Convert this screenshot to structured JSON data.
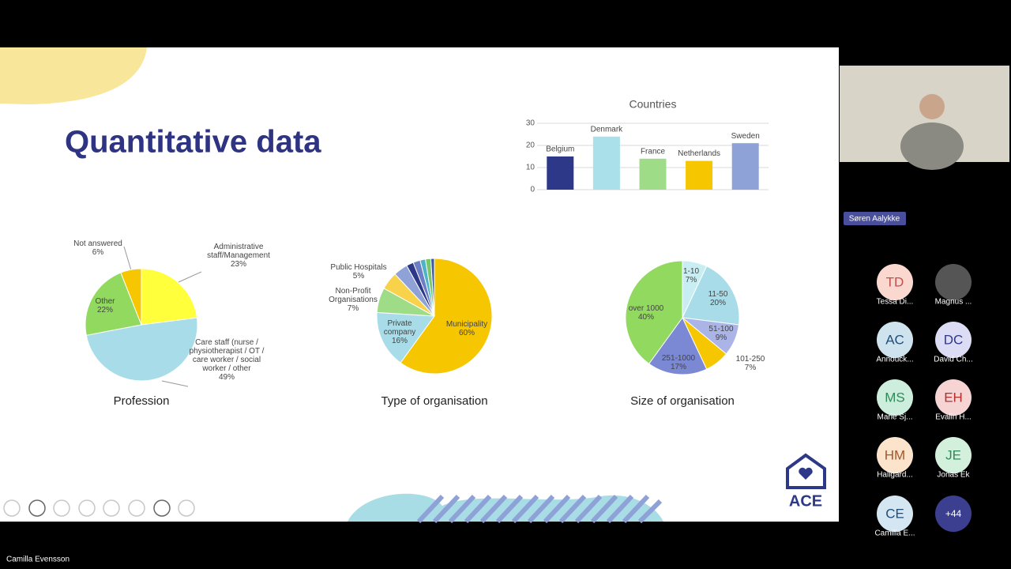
{
  "slide": {
    "title": "Quantitative data",
    "logo": "ACE"
  },
  "chart_data": [
    {
      "type": "bar",
      "title": "Countries",
      "categories": [
        "Belgium",
        "Denmark",
        "France",
        "Netherlands",
        "Sweden"
      ],
      "values": [
        15,
        24,
        14,
        13,
        21
      ],
      "colors": [
        "#2e3888",
        "#a9e0ea",
        "#9fdc88",
        "#f6c600",
        "#8fa2d8"
      ],
      "ylim": [
        0,
        30
      ],
      "yticks": [
        0,
        10,
        20,
        30
      ],
      "grid": true
    },
    {
      "type": "pie",
      "title": "Profession",
      "categories": [
        "Administrative staff/Management",
        "Care staff (nurse / physiotherapist / OT / care worker / social worker / other",
        "Other",
        "Not answered"
      ],
      "values": [
        23,
        49,
        22,
        6
      ],
      "value_labels": [
        "23%",
        "49%",
        "22%",
        "6%"
      ],
      "colors": [
        "#ffff3c",
        "#a8dce8",
        "#92d960",
        "#f6c600"
      ]
    },
    {
      "type": "pie",
      "title": "Type of organisation",
      "categories": [
        "Municipality",
        "Private company",
        "Non-Profit Organisations",
        "Public Hospitals",
        null,
        null,
        null,
        null,
        null,
        null
      ],
      "values": [
        60,
        16,
        7,
        5,
        4,
        2,
        2,
        1.5,
        1.5,
        1
      ],
      "value_labels": [
        "60%",
        "16%",
        "7%",
        "5%",
        null,
        null,
        null,
        null,
        null,
        null
      ],
      "colors": [
        "#f6c600",
        "#a8dce8",
        "#9fdc88",
        "#f7d24a",
        "#8fa2d8",
        "#2e3888",
        "#6c7fc4",
        "#4fb3c8",
        "#7ac66a",
        "#3b5aa8"
      ]
    },
    {
      "type": "pie",
      "title": "Size of organisation",
      "categories": [
        "1-10",
        "11-50",
        "51-100",
        "101-250",
        "251-1000",
        "over 1000"
      ],
      "values": [
        7,
        20,
        9,
        7,
        17,
        40
      ],
      "value_labels": [
        "7%",
        "20%",
        "9%",
        "7%",
        "17%",
        "40%"
      ],
      "colors": [
        "#c8eef3",
        "#a8dce8",
        "#aab4e6",
        "#f6c600",
        "#7b88d4",
        "#92d960"
      ]
    }
  ],
  "call": {
    "speaker": "Søren Aalykke",
    "presenter": "Camilla Evensson",
    "more": "+44",
    "participants": [
      {
        "initials": "TD",
        "name": "Tessa Di...",
        "bg": "#fbd8cf",
        "fg": "#c0504d"
      },
      {
        "initials": null,
        "name": "Magnus ...",
        "bg": "#555555",
        "fg": "#ffffff"
      },
      {
        "initials": "AC",
        "name": "Annouck...",
        "bg": "#cfe3ef",
        "fg": "#1f4e79"
      },
      {
        "initials": "DC",
        "name": "David Ch...",
        "bg": "#dcdcf5",
        "fg": "#2e3888"
      },
      {
        "initials": "MS",
        "name": "Marie Sj...",
        "bg": "#cdeedd",
        "fg": "#2e8b57"
      },
      {
        "initials": "EH",
        "name": "Evalin H...",
        "bg": "#f6d4d4",
        "fg": "#b03030"
      },
      {
        "initials": "HM",
        "name": "Hallgard...",
        "bg": "#fbe3cc",
        "fg": "#a0582a"
      },
      {
        "initials": "JE",
        "name": "Jonas Ek",
        "bg": "#d3f0dc",
        "fg": "#2e8b57"
      },
      {
        "initials": "CE",
        "name": "Camilla E...",
        "bg": "#d3e6f2",
        "fg": "#1f4e79"
      }
    ]
  }
}
